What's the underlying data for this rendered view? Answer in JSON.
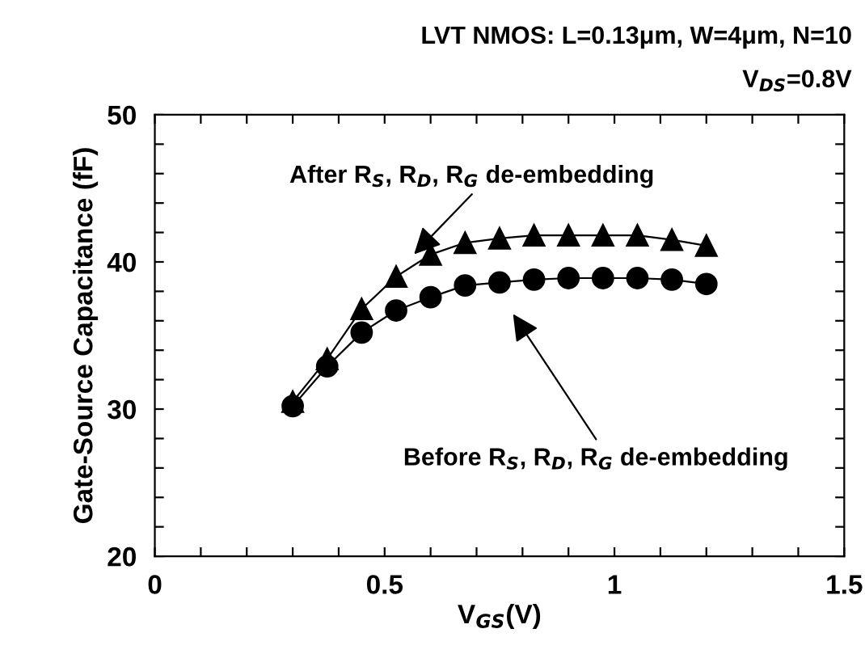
{
  "chart_data": {
    "type": "line",
    "title": "LVT NMOS: L=0.13μm, W=4μm, N=10",
    "subtitle": "V$_{DS}$=0.8V",
    "xlabel": "V$_{GS}$(V)",
    "ylabel": "Gate-Source Capacitance (fF)",
    "x": [
      0.3,
      0.375,
      0.45,
      0.525,
      0.6,
      0.675,
      0.75,
      0.825,
      0.9,
      0.975,
      1.05,
      1.125,
      1.2
    ],
    "series": [
      {
        "color": "#000000",
        "marker": "triangle",
        "values": [
          30.5,
          33.4,
          36.8,
          39.0,
          40.5,
          41.3,
          41.6,
          41.8,
          41.8,
          41.8,
          41.8,
          41.5,
          41.1
        ]
      },
      {
        "color": "#000000",
        "marker": "circle",
        "values": [
          30.2,
          32.9,
          35.2,
          36.7,
          37.6,
          38.4,
          38.6,
          38.8,
          38.9,
          38.9,
          38.9,
          38.8,
          38.5
        ]
      }
    ],
    "annotations": [
      "After R$_{S}$, R$_{D}$, R$_{G}$ de-embedding",
      "Before R$_{S}$, R$_{D}$, R$_{G}$ de-embedding"
    ],
    "xlim": [
      0,
      1.5
    ],
    "ylim": [
      20,
      50
    ],
    "xticks": [
      0,
      {
        "value": 0.1,
        "label": null
      },
      {
        "value": 0.2,
        "label": null
      },
      {
        "value": 0.3,
        "label": null
      },
      {
        "value": 0.4,
        "label": null
      },
      0.5,
      {
        "value": 0.6,
        "label": null
      },
      {
        "value": 0.7,
        "label": null
      },
      {
        "value": 0.8,
        "label": null
      },
      {
        "value": 0.9,
        "label": null
      },
      1,
      {
        "value": 1.1,
        "label": null
      },
      {
        "value": 1.2,
        "label": null
      },
      {
        "value": 1.3,
        "label": null
      },
      {
        "value": 1.4,
        "label": null
      },
      1.5
    ],
    "yticks": [
      20,
      {
        "value": 22,
        "label": null
      },
      {
        "value": 24,
        "label": null
      },
      {
        "value": 26,
        "label": null
      },
      {
        "value": 28,
        "label": null
      },
      30,
      {
        "value": 32,
        "label": null
      },
      {
        "value": 34,
        "label": null
      },
      {
        "value": 36,
        "label": null
      },
      {
        "value": 38,
        "label": null
      },
      40,
      {
        "value": 42,
        "label": null
      },
      {
        "value": 44,
        "label": null
      },
      {
        "value": 46,
        "label": null
      },
      {
        "value": 48,
        "label": null
      },
      50
    ],
    "grid": false,
    "legend": false,
    "line_style": "solid"
  }
}
